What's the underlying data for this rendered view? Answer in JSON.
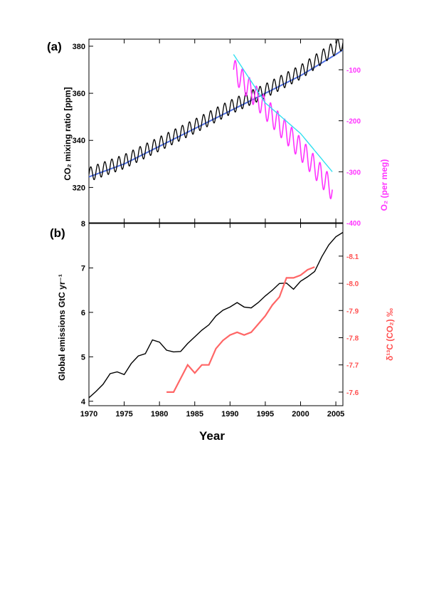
{
  "chart_data": [
    {
      "panel": "(a)",
      "type": "line",
      "xlim": [
        1970,
        2006
      ],
      "ylabel": "CO₂ mixing ratio [ppm]",
      "ylim": [
        305,
        383
      ],
      "yticks": [
        320,
        340,
        360,
        380
      ],
      "y2label": "O₂ (per meg)",
      "y2lim": [
        -400,
        -40
      ],
      "y2ticks": [
        -100,
        -200,
        -300,
        -400
      ],
      "colors": {
        "co2_seasonal": "#000000",
        "co2_trend": "#4f6fe0",
        "o2_seasonal": "#ff33ff",
        "o2_trend": "#33e0f0"
      },
      "series": [
        {
          "axis": "left",
          "kind": "seasonal",
          "amplitude": 3,
          "x": [
            1970,
            1975,
            1980,
            1985,
            1990,
            1995,
            2000,
            2005,
            2006
          ],
          "values": [
            325.5,
            331,
            338.5,
            346,
            354,
            361,
            369,
            379.5,
            381.5
          ]
        },
        {
          "axis": "left",
          "kind": "trend",
          "x": [
            1970,
            1975,
            1980,
            1985,
            1990,
            1995,
            2000,
            2005,
            2006
          ],
          "values": [
            324.5,
            330,
            337.5,
            345,
            352.5,
            360,
            367.5,
            376.5,
            378.5
          ]
        },
        {
          "axis": "right",
          "kind": "seasonal",
          "amplitude": 22,
          "x": [
            1990.5,
            1995,
            2000,
            2004.5
          ],
          "values": [
            -100,
            -175,
            -255,
            -335
          ]
        },
        {
          "axis": "right",
          "kind": "trend",
          "x": [
            1990.5,
            1995,
            2000,
            2004.5
          ],
          "values": [
            -70,
            -165,
            -225,
            -300
          ]
        }
      ]
    },
    {
      "panel": "(b)",
      "type": "line",
      "xlim": [
        1970,
        2006
      ],
      "xticks": [
        1970,
        1975,
        1980,
        1985,
        1990,
        1995,
        2000,
        2005
      ],
      "xlabel": "Year",
      "ylabel": "Global emissions GtC yr⁻¹",
      "ylim": [
        3.9,
        8
      ],
      "yticks": [
        4,
        5,
        6,
        7,
        8
      ],
      "y2label": "δ¹³C (CO₂) ‰",
      "y2lim": [
        -7.55,
        -8.22
      ],
      "y2ticks": [
        -8.1,
        -8.0,
        -7.9,
        -7.8,
        -7.7,
        -7.6
      ],
      "colors": {
        "emissions": "#000000",
        "d13c": "#ff6666"
      },
      "series": [
        {
          "axis": "left",
          "x": [
            1970,
            1971,
            1972,
            1973,
            1974,
            1975,
            1976,
            1977,
            1978,
            1979,
            1980,
            1981,
            1982,
            1983,
            1984,
            1985,
            1986,
            1987,
            1988,
            1989,
            1990,
            1991,
            1992,
            1993,
            1994,
            1995,
            1996,
            1997,
            1998,
            1999,
            2000,
            2001,
            2002,
            2003,
            2004,
            2005,
            2006
          ],
          "values": [
            4.08,
            4.22,
            4.38,
            4.62,
            4.66,
            4.6,
            4.85,
            5.02,
            5.07,
            5.38,
            5.33,
            5.15,
            5.11,
            5.12,
            5.3,
            5.45,
            5.6,
            5.72,
            5.92,
            6.05,
            6.12,
            6.22,
            6.12,
            6.1,
            6.22,
            6.37,
            6.5,
            6.65,
            6.66,
            6.52,
            6.7,
            6.8,
            6.92,
            7.25,
            7.52,
            7.7,
            7.8
          ]
        },
        {
          "axis": "right",
          "x": [
            1981,
            1982,
            1983,
            1984,
            1985,
            1986,
            1987,
            1988,
            1989,
            1990,
            1991,
            1992,
            1993,
            1994,
            1995,
            1996,
            1997,
            1998,
            1999,
            2000,
            2001,
            2002
          ],
          "values": [
            -7.6,
            -7.6,
            -7.65,
            -7.7,
            -7.67,
            -7.7,
            -7.7,
            -7.76,
            -7.79,
            -7.81,
            -7.82,
            -7.81,
            -7.82,
            -7.85,
            -7.88,
            -7.92,
            -7.95,
            -8.02,
            -8.02,
            -8.03,
            -8.05,
            -8.06
          ]
        }
      ]
    }
  ]
}
